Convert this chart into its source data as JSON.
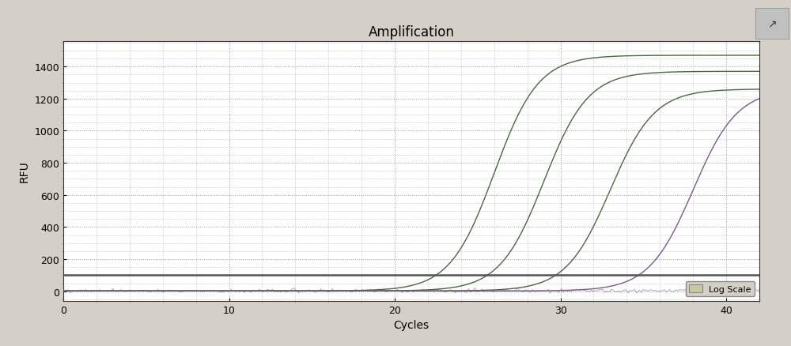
{
  "title": "Amplification",
  "xlabel": "Cycles",
  "ylabel": "RFU",
  "xlim": [
    0,
    42
  ],
  "ylim": [
    -60,
    1560
  ],
  "xticks": [
    0,
    10,
    20,
    30,
    40
  ],
  "yticks": [
    0,
    200,
    400,
    600,
    800,
    1000,
    1200,
    1400
  ],
  "outer_bg": "#d4d0c8",
  "plot_bg_color": "#ffffff",
  "grid_color": "#999999",
  "curves": [
    {
      "midpoint": 26.0,
      "steepness": 0.75,
      "plateau": 1470,
      "baseline": 2,
      "color": "#4a6741"
    },
    {
      "midpoint": 29.0,
      "steepness": 0.75,
      "plateau": 1370,
      "baseline": 2,
      "color": "#4a6741"
    },
    {
      "midpoint": 33.0,
      "steepness": 0.75,
      "plateau": 1260,
      "baseline": 2,
      "color": "#4a6741"
    },
    {
      "midpoint": 38.0,
      "steepness": 0.75,
      "plateau": 1260,
      "baseline": 2,
      "color": "#7a5a8a"
    }
  ],
  "threshold_line": {
    "y": 100,
    "color": "#555555",
    "linewidth": 1.8
  },
  "noise_line": {
    "y": 3,
    "color": "#777777",
    "linewidth": 0.6
  },
  "legend_label": "Log Scale",
  "legend_facecolor": "#c8c8a0",
  "legend_edgecolor": "#888888",
  "title_fontsize": 12,
  "axis_fontsize": 10,
  "tick_fontsize": 9
}
